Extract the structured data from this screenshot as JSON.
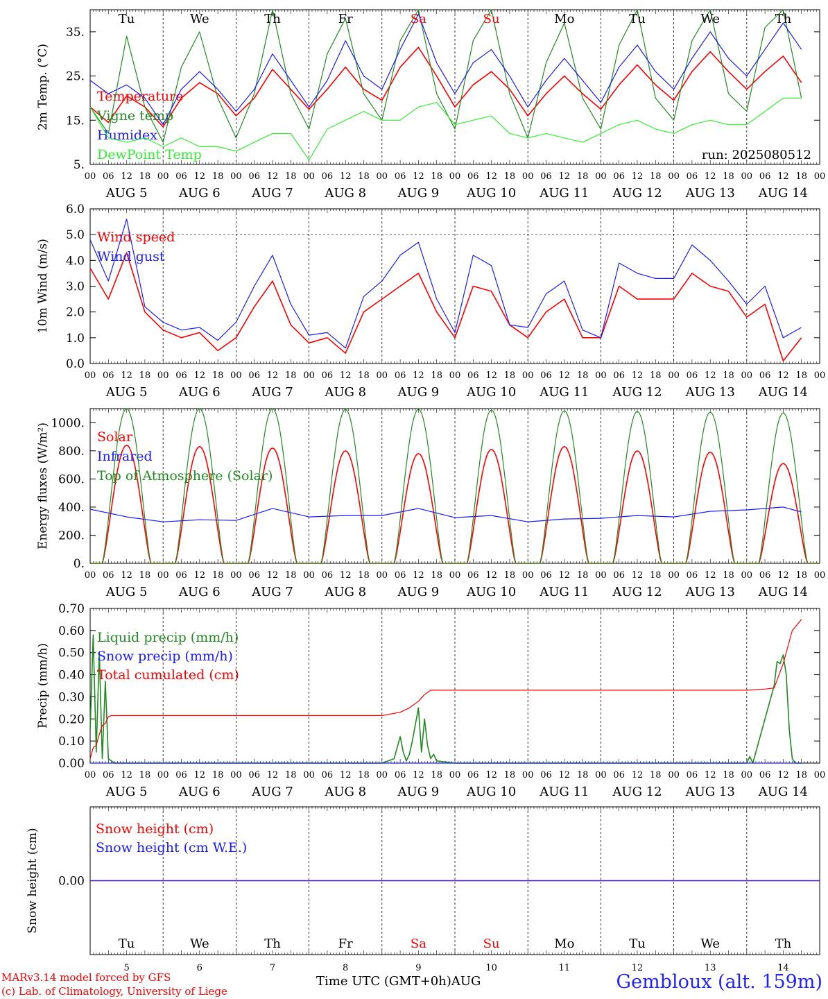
{
  "footer": {
    "model_line": "MARv3.14 model forced by GFS",
    "credit_line": "(c) Lab. of Climatology, University of Liege",
    "x_axis_title": "Time UTC (GMT+0h)",
    "month": "AUG",
    "station": "Gembloux (alt. 159m)"
  },
  "colors": {
    "red": "#ff0000",
    "green": "#1f8a1f",
    "blue": "#1a1aff",
    "light_green": "#33ee33",
    "weekend": "#ff0000",
    "axis": "#000000"
  },
  "days": {
    "names": [
      "Tu",
      "We",
      "Th",
      "Fr",
      "Sa",
      "Su",
      "Mo",
      "Tu",
      "We",
      "Th"
    ],
    "weekend": [
      false,
      false,
      false,
      false,
      true,
      true,
      false,
      false,
      false,
      false
    ],
    "numbers": [
      "5",
      "6",
      "7",
      "8",
      "9",
      "10",
      "11",
      "12",
      "13",
      "14"
    ],
    "labels": [
      "AUG  5",
      "AUG  6",
      "AUG  7",
      "AUG  8",
      "AUG  9",
      "AUG 10",
      "AUG 11",
      "AUG 12",
      "AUG 13",
      "AUG 14"
    ],
    "hour_ticks": [
      "00",
      "06",
      "12",
      "18"
    ],
    "final_tick": "00"
  },
  "chart_data": [
    {
      "type": "line",
      "ylabel": "2m Temp. (°C)",
      "ylim": [
        5,
        40
      ],
      "yticks": [
        "5.",
        "15.",
        "25.",
        "35."
      ],
      "yticks_v": [
        5,
        15,
        25,
        35
      ],
      "annotation": "run: 2025080512",
      "x_unit": "hours since AUG 5 00 UTC",
      "series": [
        {
          "name": "Temperature",
          "color": "red",
          "x": [
            0,
            6,
            12,
            18,
            24,
            30,
            36,
            42,
            48,
            54,
            60,
            66,
            72,
            78,
            84,
            90,
            96,
            102,
            108,
            114,
            120,
            126,
            132,
            138,
            144,
            150,
            156,
            162,
            168,
            174,
            180,
            186,
            192,
            198,
            204,
            210,
            216,
            222,
            228,
            234
          ],
          "y": [
            18,
            14.5,
            20.5,
            18,
            13.5,
            20,
            23.5,
            21,
            16,
            20,
            26.5,
            22,
            17.5,
            22,
            27,
            22,
            19.5,
            27,
            31.5,
            25,
            18,
            23,
            26,
            22,
            16,
            21,
            25,
            21,
            17.5,
            23,
            27.5,
            23,
            19.5,
            26,
            30.5,
            26,
            22,
            26,
            29.5,
            23.5
          ]
        },
        {
          "name": "Vigne temp",
          "color": "green",
          "x": [
            0,
            6,
            12,
            18,
            24,
            30,
            36,
            42,
            48,
            54,
            60,
            66,
            72,
            78,
            84,
            90,
            96,
            102,
            108,
            114,
            120,
            126,
            132,
            138,
            144,
            150,
            156,
            162,
            168,
            174,
            180,
            186,
            192,
            198,
            204,
            210,
            216,
            222,
            228,
            234
          ],
          "y": [
            18,
            12,
            34,
            18,
            10,
            27,
            35,
            20,
            11,
            21,
            40,
            21,
            13,
            30,
            38,
            21,
            15,
            33,
            40,
            21,
            13,
            33,
            40,
            21,
            11,
            28,
            37,
            20,
            13,
            32,
            40,
            20,
            15,
            33,
            40,
            21,
            17,
            36,
            40,
            20
          ]
        },
        {
          "name": "Humidex",
          "color": "blue",
          "x": [
            0,
            6,
            12,
            18,
            24,
            30,
            36,
            42,
            48,
            54,
            60,
            66,
            72,
            78,
            84,
            90,
            96,
            102,
            108,
            114,
            120,
            126,
            132,
            138,
            144,
            150,
            156,
            162,
            168,
            174,
            180,
            186,
            192,
            198,
            204,
            210,
            216,
            222,
            228,
            234
          ],
          "y": [
            24,
            21,
            23,
            20,
            14,
            22,
            26,
            22,
            17,
            22,
            30,
            24,
            18,
            24,
            33,
            25,
            22,
            31,
            39,
            28,
            21,
            28,
            31,
            25,
            18,
            24,
            29,
            24,
            19,
            27,
            32,
            26,
            22,
            29,
            35,
            29,
            25,
            31,
            37,
            31
          ]
        },
        {
          "name": "DewPoint Temp",
          "color": "light_green",
          "x": [
            0,
            6,
            12,
            18,
            24,
            30,
            36,
            42,
            48,
            54,
            60,
            66,
            72,
            78,
            84,
            90,
            96,
            102,
            108,
            114,
            120,
            126,
            132,
            138,
            144,
            150,
            156,
            162,
            168,
            174,
            180,
            186,
            192,
            198,
            204,
            210,
            216,
            222,
            228,
            234
          ],
          "y": [
            18,
            11,
            10,
            11,
            9,
            11,
            9,
            9,
            8,
            10,
            12,
            12,
            6,
            13,
            15,
            17,
            15,
            15,
            18,
            19,
            14,
            15,
            16,
            12,
            11,
            12,
            11,
            10,
            12,
            14,
            15,
            13,
            12,
            14,
            15,
            14,
            14,
            17,
            20,
            20
          ]
        }
      ]
    },
    {
      "type": "line",
      "ylabel": "10m Wind (m/s)",
      "ylim": [
        0,
        6
      ],
      "yticks": [
        "0.0",
        "1.0",
        "2.0",
        "3.0",
        "4.0",
        "5.0",
        "6.0"
      ],
      "yticks_v": [
        0,
        1,
        2,
        3,
        4,
        5,
        6
      ],
      "dashed_ref": 5,
      "series": [
        {
          "name": "Wind speed",
          "color": "red",
          "x": [
            0,
            6,
            12,
            18,
            24,
            30,
            36,
            42,
            48,
            54,
            60,
            66,
            72,
            78,
            84,
            90,
            96,
            102,
            108,
            114,
            120,
            126,
            132,
            138,
            144,
            150,
            156,
            162,
            168,
            174,
            180,
            186,
            192,
            198,
            204,
            210,
            216,
            222,
            228,
            234
          ],
          "y": [
            3.7,
            2.5,
            4.3,
            2.0,
            1.3,
            1.0,
            1.2,
            0.5,
            1.0,
            2.2,
            3.2,
            1.5,
            0.8,
            1.0,
            0.4,
            2.0,
            2.5,
            3.0,
            3.5,
            2.0,
            1.0,
            3.0,
            2.8,
            1.5,
            1.0,
            2.0,
            2.5,
            1.0,
            1.0,
            3.0,
            2.5,
            2.5,
            2.5,
            3.5,
            3.0,
            2.8,
            1.8,
            2.3,
            0.1,
            1.0
          ]
        },
        {
          "name": "Wind gust",
          "color": "blue",
          "x": [
            0,
            6,
            12,
            18,
            24,
            30,
            36,
            42,
            48,
            54,
            60,
            66,
            72,
            78,
            84,
            90,
            96,
            102,
            108,
            114,
            120,
            126,
            132,
            138,
            144,
            150,
            156,
            162,
            168,
            174,
            180,
            186,
            192,
            198,
            204,
            210,
            216,
            222,
            228,
            234
          ],
          "y": [
            4.8,
            3.2,
            5.6,
            2.2,
            1.6,
            1.3,
            1.4,
            0.9,
            1.6,
            3.0,
            4.2,
            2.3,
            1.1,
            1.2,
            0.6,
            2.6,
            3.2,
            4.2,
            4.7,
            2.5,
            1.2,
            4.2,
            3.8,
            1.5,
            1.4,
            2.7,
            3.2,
            1.3,
            1.0,
            3.9,
            3.5,
            3.3,
            3.3,
            4.6,
            4.0,
            3.2,
            2.3,
            3.0,
            1.0,
            1.4
          ]
        }
      ]
    },
    {
      "type": "line",
      "ylabel": "Energy fluxes (W/m²)",
      "ylim": [
        0,
        1100
      ],
      "yticks": [
        "0.",
        "200.",
        "400.",
        "600.",
        "800.",
        "1000."
      ],
      "yticks_v": [
        0,
        200,
        400,
        600,
        800,
        1000
      ],
      "series": [
        {
          "name": "Solar",
          "color": "red",
          "daily_peak": [
            840,
            830,
            820,
            800,
            780,
            810,
            830,
            800,
            790,
            710
          ]
        },
        {
          "name": "Infrared",
          "color": "blue",
          "x": [
            0,
            12,
            24,
            36,
            48,
            60,
            72,
            84,
            96,
            108,
            120,
            132,
            144,
            156,
            168,
            180,
            192,
            204,
            216,
            228,
            234
          ],
          "y": [
            385,
            330,
            295,
            310,
            305,
            390,
            330,
            340,
            340,
            390,
            325,
            340,
            295,
            315,
            320,
            340,
            330,
            370,
            380,
            400,
            365
          ]
        },
        {
          "name": "Top of Atmosphere (Solar)",
          "color": "green",
          "daily_peak": [
            1100,
            1100,
            1100,
            1095,
            1095,
            1090,
            1085,
            1080,
            1075,
            1070
          ]
        }
      ]
    },
    {
      "type": "line",
      "ylabel": "Precip (mm/h)",
      "ylim": [
        0,
        0.7
      ],
      "yticks": [
        "0.00",
        "0.10",
        "0.20",
        "0.30",
        "0.40",
        "0.50",
        "0.60",
        "0.70"
      ],
      "yticks_v": [
        0,
        0.1,
        0.2,
        0.3,
        0.4,
        0.5,
        0.6,
        0.7
      ],
      "series": [
        {
          "name": "Liquid precip (mm/h)",
          "color": "green",
          "x": [
            0,
            1,
            2,
            3,
            4,
            5,
            6,
            7,
            8,
            10,
            96,
            100,
            102,
            103,
            104,
            105,
            106,
            108,
            109,
            110,
            111,
            112,
            113,
            114,
            120,
            216,
            217,
            218,
            225,
            226,
            227,
            228,
            229,
            230,
            231,
            232,
            233,
            234
          ],
          "y": [
            0.15,
            0.58,
            0.05,
            0.5,
            0.02,
            0.37,
            0.02,
            0.01,
            0,
            0,
            0,
            0.02,
            0.12,
            0.05,
            0.01,
            0.04,
            0.1,
            0.25,
            0.05,
            0.2,
            0.08,
            0.02,
            0.04,
            0.01,
            0,
            0,
            0.03,
            0,
            0.35,
            0.46,
            0.45,
            0.49,
            0.4,
            0.15,
            0.02,
            0,
            0,
            0
          ]
        },
        {
          "name": "Snow precip (mm/h)",
          "color": "blue",
          "x": [
            0,
            234
          ],
          "y": [
            0,
            0
          ]
        },
        {
          "name": "Total cumulated (cm)",
          "color": "red",
          "x": [
            0,
            1,
            2,
            3,
            4,
            5,
            6,
            7,
            96,
            102,
            105,
            108,
            110,
            112,
            114,
            120,
            216,
            222,
            225,
            228,
            231,
            234
          ],
          "y": [
            0.02,
            0.07,
            0.08,
            0.13,
            0.17,
            0.18,
            0.21,
            0.215,
            0.215,
            0.23,
            0.25,
            0.28,
            0.31,
            0.33,
            0.33,
            0.33,
            0.33,
            0.335,
            0.34,
            0.45,
            0.6,
            0.65
          ]
        }
      ]
    },
    {
      "type": "line",
      "ylabel": "Snow height (cm)",
      "ylim": [
        -1,
        1
      ],
      "yticks": [
        "0.00"
      ],
      "yticks_v": [
        0
      ],
      "series": [
        {
          "name": "Snow height (cm)",
          "color": "red",
          "x": [
            0,
            240
          ],
          "y": [
            0,
            0
          ]
        },
        {
          "name": "Snow height (cm W.E.)",
          "color": "blue",
          "x": [
            0,
            240
          ],
          "y": [
            0,
            0
          ]
        }
      ]
    }
  ]
}
